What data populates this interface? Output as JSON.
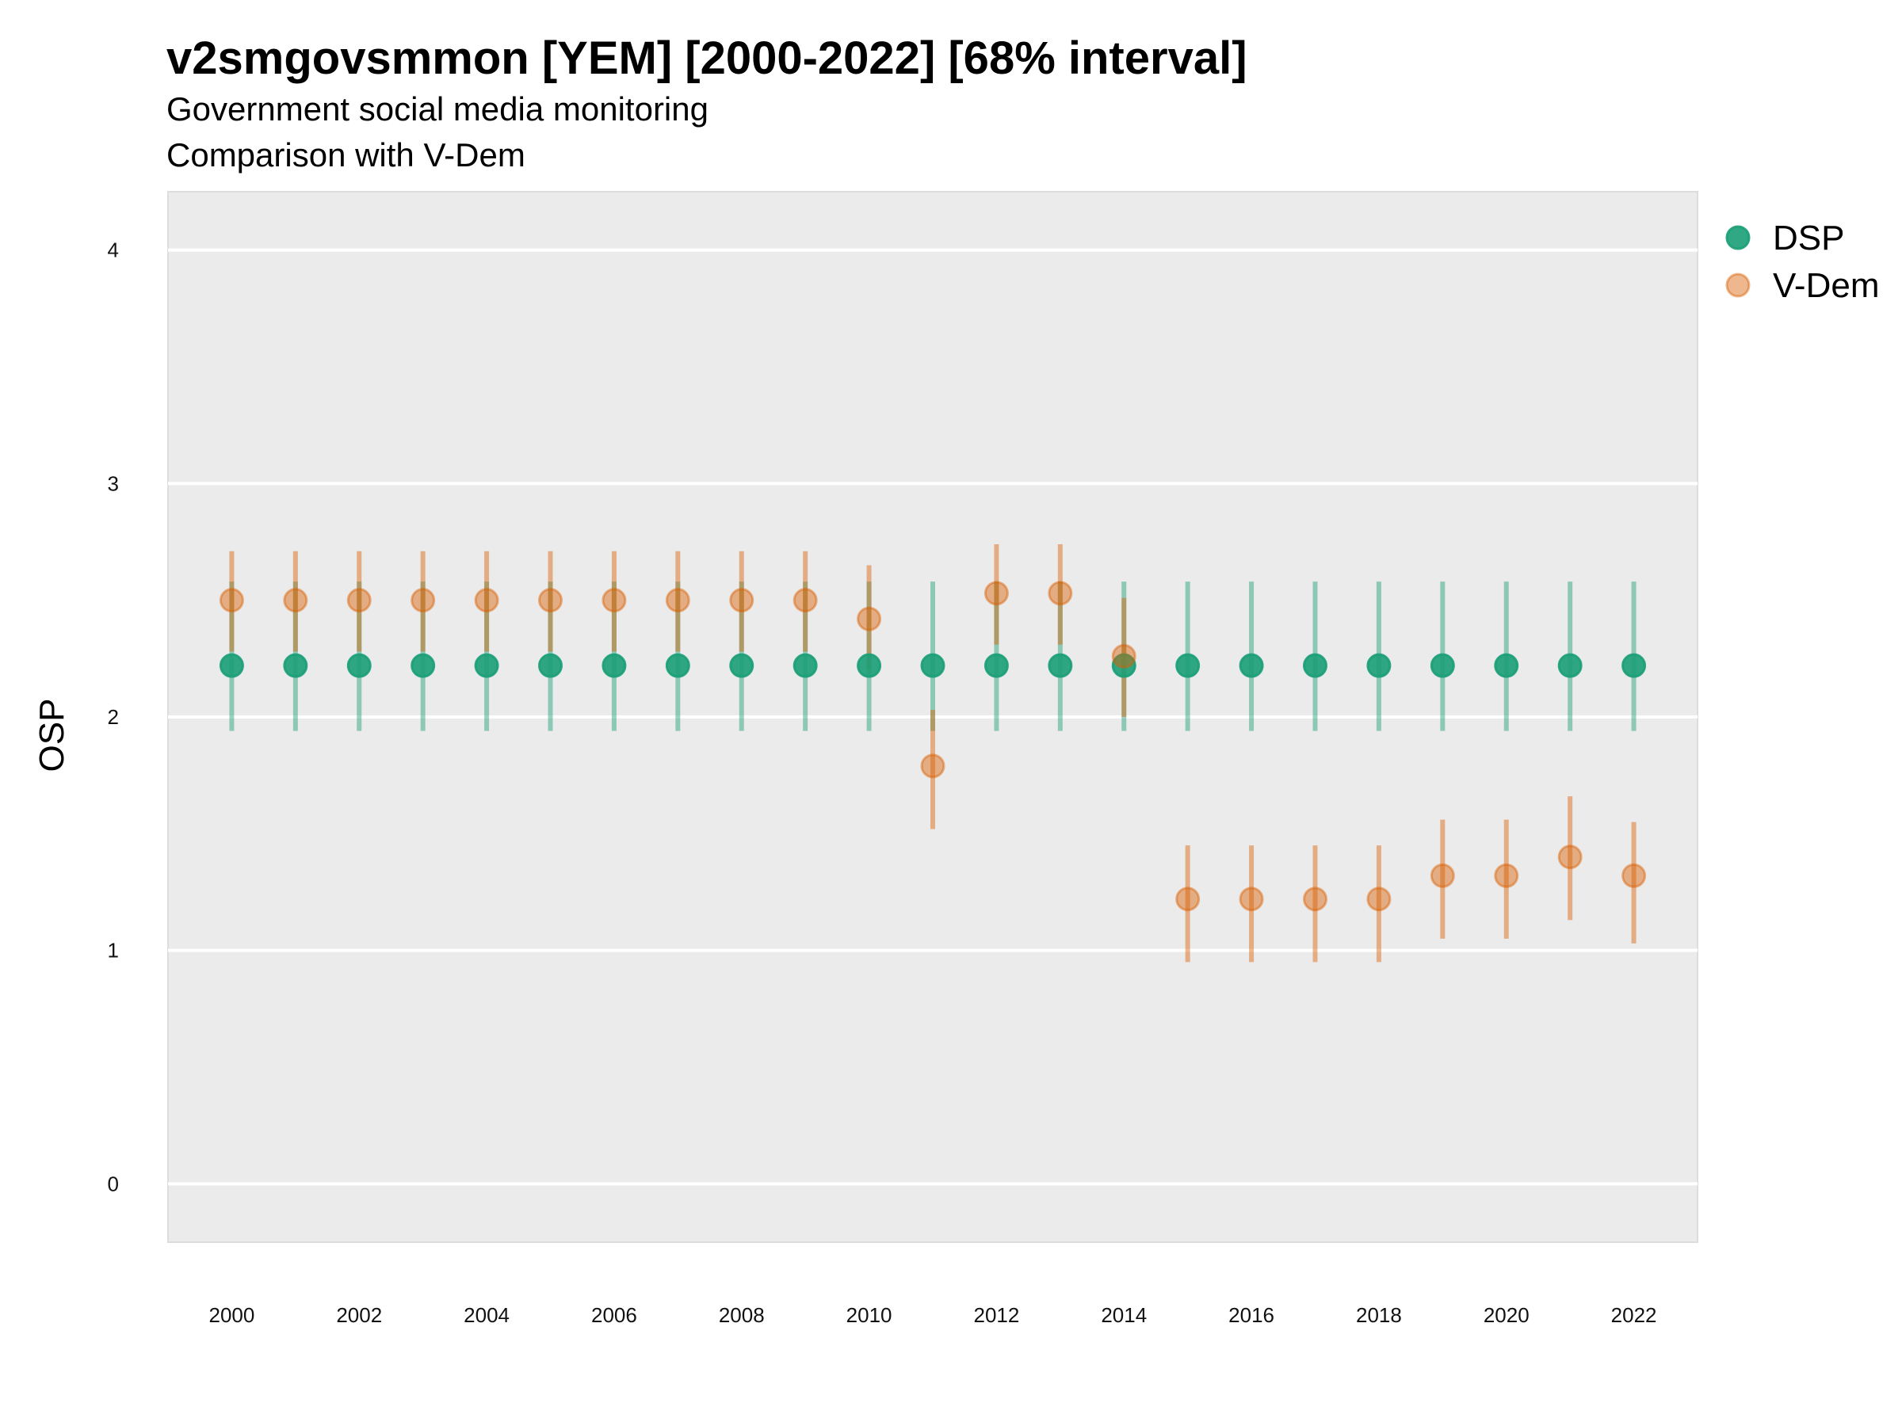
{
  "chart_data": {
    "type": "scatter",
    "title": "v2smgovsmmon [YEM] [2000-2022] [68% interval]",
    "subtitle_lines": [
      "Government social media monitoring",
      "Comparison with V-Dem"
    ],
    "xlabel": "",
    "ylabel": "OSP",
    "x": [
      2000,
      2001,
      2002,
      2003,
      2004,
      2005,
      2006,
      2007,
      2008,
      2009,
      2010,
      2011,
      2012,
      2013,
      2014,
      2015,
      2016,
      2017,
      2018,
      2019,
      2020,
      2021,
      2022
    ],
    "x_ticks": [
      "2000",
      "2002",
      "2004",
      "2006",
      "2008",
      "2010",
      "2012",
      "2014",
      "2016",
      "2018",
      "2020",
      "2022"
    ],
    "x_tick_values": [
      2000,
      2002,
      2004,
      2006,
      2008,
      2010,
      2012,
      2014,
      2016,
      2018,
      2020,
      2022
    ],
    "xlim": [
      1999,
      2023
    ],
    "y_ticks": [
      "0",
      "1",
      "2",
      "3",
      "4"
    ],
    "y_tick_values": [
      0,
      1,
      2,
      3,
      4
    ],
    "ylim": [
      -0.25,
      4.25
    ],
    "grid": true,
    "legend_position": "top-right",
    "series": [
      {
        "name": "DSP",
        "color": "#1b9e77",
        "values": [
          2.22,
          2.22,
          2.22,
          2.22,
          2.22,
          2.22,
          2.22,
          2.22,
          2.22,
          2.22,
          2.22,
          2.22,
          2.22,
          2.22,
          2.22,
          2.22,
          2.22,
          2.22,
          2.22,
          2.22,
          2.22,
          2.22,
          2.22
        ],
        "lower": [
          1.94,
          1.94,
          1.94,
          1.94,
          1.94,
          1.94,
          1.94,
          1.94,
          1.94,
          1.94,
          1.94,
          1.94,
          1.94,
          1.94,
          1.94,
          1.94,
          1.94,
          1.94,
          1.94,
          1.94,
          1.94,
          1.94,
          1.94
        ],
        "upper": [
          2.58,
          2.58,
          2.58,
          2.58,
          2.58,
          2.58,
          2.58,
          2.58,
          2.58,
          2.58,
          2.58,
          2.58,
          2.58,
          2.58,
          2.58,
          2.58,
          2.58,
          2.58,
          2.58,
          2.58,
          2.58,
          2.58,
          2.58
        ]
      },
      {
        "name": "V-Dem",
        "color": "#d95f02",
        "values": [
          2.5,
          2.5,
          2.5,
          2.5,
          2.5,
          2.5,
          2.5,
          2.5,
          2.5,
          2.5,
          2.42,
          1.79,
          2.53,
          2.53,
          2.26,
          1.22,
          1.22,
          1.22,
          1.22,
          1.32,
          1.32,
          1.4,
          1.32
        ],
        "lower": [
          2.28,
          2.28,
          2.28,
          2.28,
          2.28,
          2.28,
          2.28,
          2.28,
          2.28,
          2.28,
          2.2,
          1.52,
          2.31,
          2.31,
          2.0,
          0.95,
          0.95,
          0.95,
          0.95,
          1.05,
          1.05,
          1.13,
          1.03
        ],
        "upper": [
          2.71,
          2.71,
          2.71,
          2.71,
          2.71,
          2.71,
          2.71,
          2.71,
          2.71,
          2.71,
          2.65,
          2.03,
          2.74,
          2.74,
          2.51,
          1.45,
          1.45,
          1.45,
          1.45,
          1.56,
          1.56,
          1.66,
          1.55
        ]
      }
    ]
  }
}
